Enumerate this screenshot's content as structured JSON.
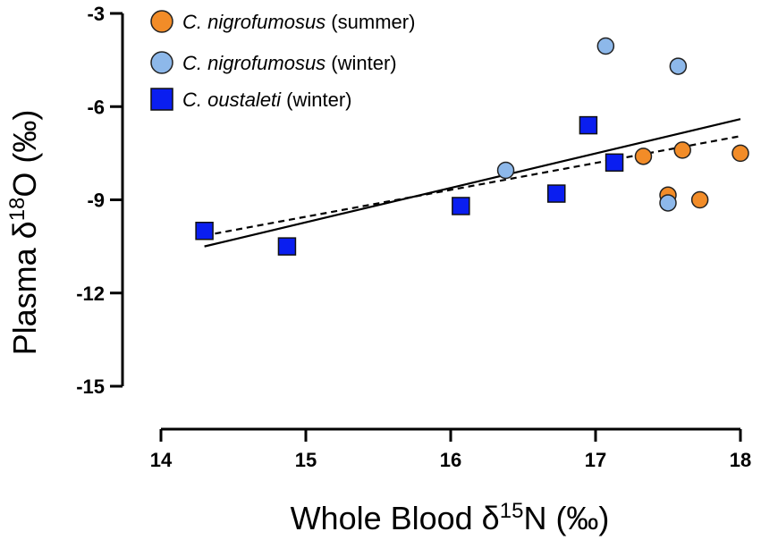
{
  "chart_data": {
    "type": "scatter",
    "title": "",
    "xlabel": {
      "prefix": "Whole Blood δ",
      "sup": "15",
      "suffix": "N (‰)"
    },
    "ylabel": {
      "prefix": "Plasma δ",
      "sup": "18",
      "suffix": "O (‰)"
    },
    "xlim": [
      14,
      18
    ],
    "ylim": [
      -15,
      -3
    ],
    "xticks": [
      14,
      15,
      16,
      17,
      18
    ],
    "yticks": [
      -3,
      -6,
      -9,
      -12,
      -15
    ],
    "grid": false,
    "legend_position": "top-left",
    "series": [
      {
        "name": "C. nigrofumosus (summer)",
        "italic": "C. nigrofumosus",
        "rest": " (summer)",
        "marker": "circle",
        "color": "#F28C28",
        "points": [
          [
            17.33,
            -7.6
          ],
          [
            17.5,
            -8.85
          ],
          [
            17.6,
            -7.4
          ],
          [
            17.72,
            -9.0
          ],
          [
            18.0,
            -7.5
          ]
        ]
      },
      {
        "name": "C. nigrofumosus (winter)",
        "italic": "C. nigrofumosus",
        "rest": " (winter)",
        "marker": "circle",
        "color": "#8DB8EA",
        "points": [
          [
            16.38,
            -8.05
          ],
          [
            17.07,
            -4.05
          ],
          [
            17.5,
            -9.1
          ],
          [
            17.57,
            -4.7
          ]
        ]
      },
      {
        "name": "C. oustaleti (winter)",
        "italic": "C. oustaleti",
        "rest": " (winter)",
        "marker": "square",
        "color": "#0A1EF0",
        "points": [
          [
            14.3,
            -10.0
          ],
          [
            14.87,
            -10.5
          ],
          [
            16.07,
            -9.2
          ],
          [
            16.73,
            -8.8
          ],
          [
            16.95,
            -6.6
          ],
          [
            17.13,
            -7.8
          ]
        ]
      }
    ],
    "fit_lines": [
      {
        "style": "solid",
        "x": [
          14.3,
          18.0
        ],
        "y": [
          -10.5,
          -6.4
        ]
      },
      {
        "style": "dashed",
        "x": [
          14.3,
          18.0
        ],
        "y": [
          -10.15,
          -6.95
        ]
      }
    ]
  }
}
